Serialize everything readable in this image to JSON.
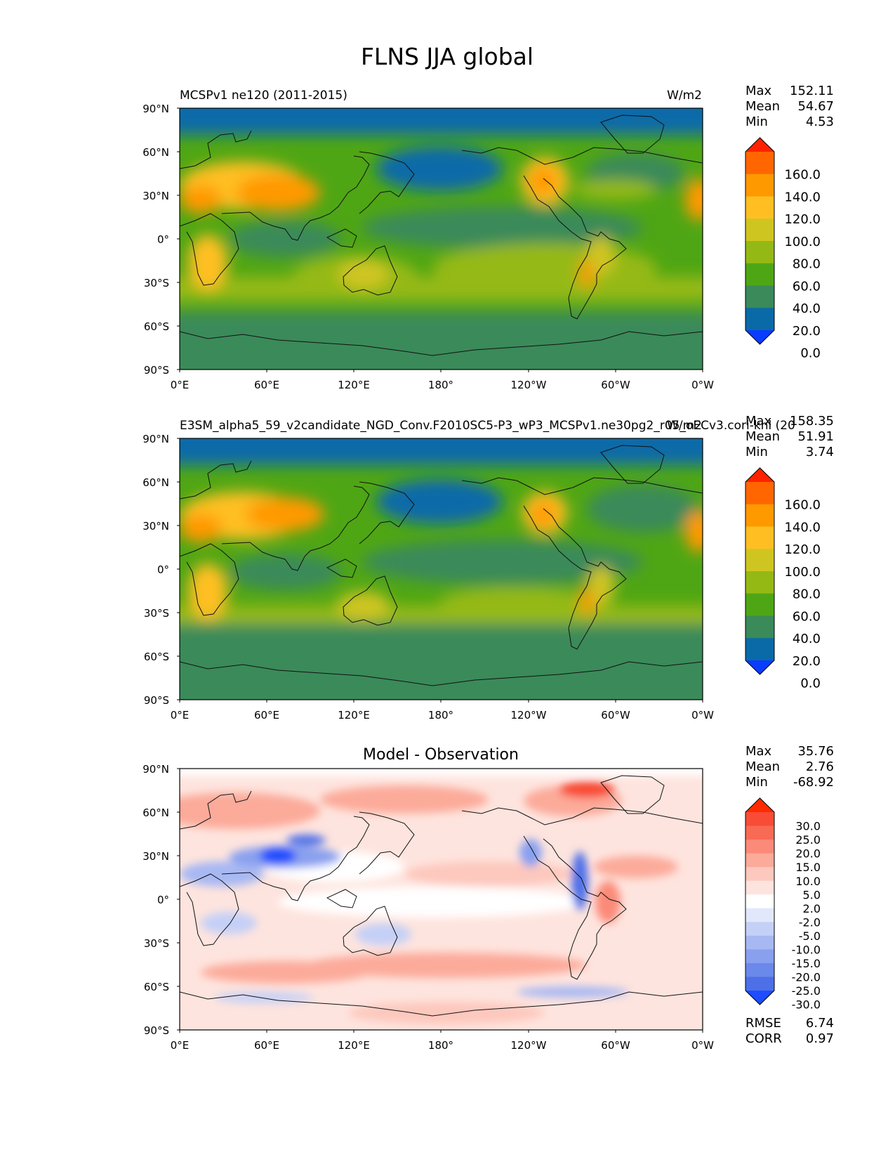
{
  "figure": {
    "title": "FLNS JJA global"
  },
  "panels": [
    {
      "id": "model",
      "left_label": "MCSPv1 ne120 (2011-2015)",
      "units": "W/m2",
      "stats": [
        {
          "label": "Max",
          "value": "152.11"
        },
        {
          "label": "Mean",
          "value": "54.67"
        },
        {
          "label": "Min",
          "value": "4.53"
        }
      ],
      "colorbar": {
        "labels": [
          "160.0",
          "140.0",
          "120.0",
          "100.0",
          "80.0",
          "60.0",
          "40.0",
          "20.0",
          "0.0"
        ],
        "colors": [
          "#ff2200",
          "#ff6600",
          "#ff9900",
          "#ffbf22",
          "#cfc520",
          "#95b914",
          "#4fa614",
          "#3a8a5a",
          "#0a6aa8",
          "#0a3cff"
        ]
      }
    },
    {
      "id": "observation",
      "left_label": "E3SM_alpha5_59_v2candidate_NGD_Conv.F2010SC5-P3_wP3_MCSPv1.ne30pg2_r05_oECv3.cori-knl (20",
      "units": "W/m2",
      "stats": [
        {
          "label": "Max",
          "value": "158.35"
        },
        {
          "label": "Mean",
          "value": "51.91"
        },
        {
          "label": "Min",
          "value": "3.74"
        }
      ],
      "colorbar": {
        "labels": [
          "160.0",
          "140.0",
          "120.0",
          "100.0",
          "80.0",
          "60.0",
          "40.0",
          "20.0",
          "0.0"
        ],
        "colors": [
          "#ff2200",
          "#ff6600",
          "#ff9900",
          "#ffbf22",
          "#cfc520",
          "#95b914",
          "#4fa614",
          "#3a8a5a",
          "#0a6aa8",
          "#0a3cff"
        ]
      }
    },
    {
      "id": "difference",
      "center_title": "Model - Observation",
      "stats": [
        {
          "label": "Max",
          "value": "35.76"
        },
        {
          "label": "Mean",
          "value": "2.76"
        },
        {
          "label": "Min",
          "value": "-68.92"
        }
      ],
      "extra_stats": [
        {
          "label": "RMSE",
          "value": "6.74"
        },
        {
          "label": "CORR",
          "value": "0.97"
        }
      ],
      "colorbar": {
        "labels": [
          "30.0",
          "25.0",
          "20.0",
          "15.0",
          "10.0",
          "5.0",
          "2.0",
          "-2.0",
          "-5.0",
          "-10.0",
          "-15.0",
          "-20.0",
          "-25.0",
          "-30.0"
        ],
        "colors": [
          "#ff2a00",
          "#f84c36",
          "#f96a55",
          "#fb8a78",
          "#fcaa9a",
          "#fdc8bd",
          "#fee4de",
          "#ffffff",
          "#e2e8fb",
          "#c5d0f7",
          "#a7b8f3",
          "#89a0ef",
          "#6b88eb",
          "#4d70e8",
          "#1e4cff"
        ]
      }
    }
  ],
  "axes": {
    "lat_ticks": [
      "90°N",
      "60°N",
      "30°N",
      "0°",
      "30°S",
      "60°S",
      "90°S"
    ],
    "lon_ticks": [
      "0°E",
      "60°E",
      "120°E",
      "180°",
      "120°W",
      "60°W",
      "0°W"
    ]
  }
}
